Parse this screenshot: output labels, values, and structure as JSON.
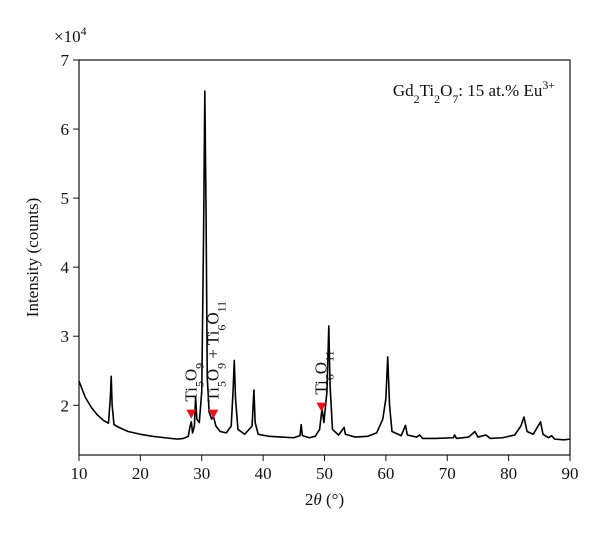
{
  "chart_data": {
    "type": "line",
    "multiplier": [
      {
        "text": "×10"
      },
      {
        "text": "4",
        "shift": "super"
      }
    ],
    "xlabel": [
      {
        "text": "2"
      },
      {
        "text": "θ",
        "style": "italic"
      },
      {
        "text": " (°)"
      }
    ],
    "ylabel": [
      {
        "text": "Intensity (counts)"
      }
    ],
    "annotation": [
      {
        "text": "Gd"
      },
      {
        "text": "2",
        "shift": "sub"
      },
      {
        "text": "Ti"
      },
      {
        "text": "2",
        "shift": "sub"
      },
      {
        "text": "O"
      },
      {
        "text": "7",
        "shift": "sub"
      },
      {
        "text": ": 15 at.% Eu"
      },
      {
        "text": "3+",
        "shift": "super"
      }
    ],
    "xlim": [
      10,
      90
    ],
    "xticks": [
      10,
      20,
      30,
      40,
      50,
      60,
      70,
      80,
      90
    ],
    "ylim": [
      1.28,
      7
    ],
    "yticks": [
      2,
      3,
      4,
      5,
      6,
      7
    ],
    "series": [
      {
        "color": "#000000",
        "x": [
          10,
          11,
          12,
          13,
          14,
          14.8,
          15.1,
          15.25,
          15.4,
          15.7,
          16.5,
          18,
          20,
          22,
          24,
          26,
          27,
          27.8,
          28.1,
          28.3,
          28.5,
          28.8,
          29.0,
          29.2,
          29.6,
          30.0,
          30.3,
          30.5,
          30.7,
          30.9,
          31.2,
          31.6,
          31.9,
          32.3,
          33,
          34,
          34.8,
          35.1,
          35.3,
          35.5,
          35.9,
          37,
          38.2,
          38.5,
          38.7,
          39.2,
          41,
          43,
          45,
          46,
          46.2,
          46.4,
          47.5,
          48.5,
          49.2,
          49.6,
          49.9,
          50.4,
          50.7,
          50.9,
          51.3,
          52.3,
          53.2,
          53.4,
          55,
          57,
          58.5,
          59.5,
          60.0,
          60.3,
          60.6,
          61.0,
          62.5,
          63.2,
          63.5,
          65,
          65.5,
          66,
          68,
          71,
          71.2,
          71.5,
          73.5,
          74.5,
          75,
          76.3,
          77,
          79,
          81,
          82,
          82.5,
          83,
          84,
          85.2,
          85.6,
          86.5,
          87,
          87.5,
          89,
          90
        ],
        "values": [
          2.35,
          2.12,
          1.97,
          1.86,
          1.78,
          1.74,
          2.1,
          2.42,
          2.0,
          1.72,
          1.68,
          1.62,
          1.58,
          1.55,
          1.53,
          1.51,
          1.52,
          1.55,
          1.7,
          1.76,
          1.6,
          1.7,
          2.12,
          1.8,
          1.75,
          2.2,
          4.5,
          6.55,
          4.8,
          2.4,
          1.9,
          1.8,
          1.84,
          1.7,
          1.62,
          1.6,
          1.7,
          2.2,
          2.65,
          2.1,
          1.65,
          1.58,
          1.7,
          2.22,
          1.75,
          1.58,
          1.55,
          1.54,
          1.53,
          1.56,
          1.72,
          1.56,
          1.53,
          1.55,
          1.65,
          1.95,
          1.75,
          2.2,
          3.15,
          2.3,
          1.65,
          1.57,
          1.68,
          1.58,
          1.54,
          1.55,
          1.6,
          1.8,
          2.1,
          2.7,
          2.0,
          1.62,
          1.56,
          1.71,
          1.57,
          1.54,
          1.57,
          1.52,
          1.52,
          1.53,
          1.57,
          1.52,
          1.54,
          1.62,
          1.54,
          1.57,
          1.52,
          1.53,
          1.57,
          1.7,
          1.83,
          1.62,
          1.58,
          1.76,
          1.58,
          1.53,
          1.56,
          1.51,
          1.5,
          1.51
        ]
      }
    ],
    "markers": [
      {
        "x": 28.3,
        "y": 1.88,
        "color": "#e8141c",
        "label": [
          {
            "text": "Ti"
          },
          {
            "text": "5",
            "shift": "sub"
          },
          {
            "text": "O"
          },
          {
            "text": "9",
            "shift": "sub"
          }
        ]
      },
      {
        "x": 31.9,
        "y": 1.88,
        "color": "#e8141c",
        "label": [
          {
            "text": "Ti"
          },
          {
            "text": "5",
            "shift": "sub"
          },
          {
            "text": "O"
          },
          {
            "text": "9",
            "shift": "sub"
          },
          {
            "text": " + Ti"
          },
          {
            "text": "6",
            "shift": "sub"
          },
          {
            "text": "O"
          },
          {
            "text": "11",
            "shift": "sub"
          }
        ]
      },
      {
        "x": 49.5,
        "y": 1.98,
        "color": "#e8141c",
        "label": [
          {
            "text": "Ti"
          },
          {
            "text": "6",
            "shift": "sub"
          },
          {
            "text": "O"
          },
          {
            "text": "11",
            "shift": "sub"
          }
        ]
      }
    ]
  }
}
